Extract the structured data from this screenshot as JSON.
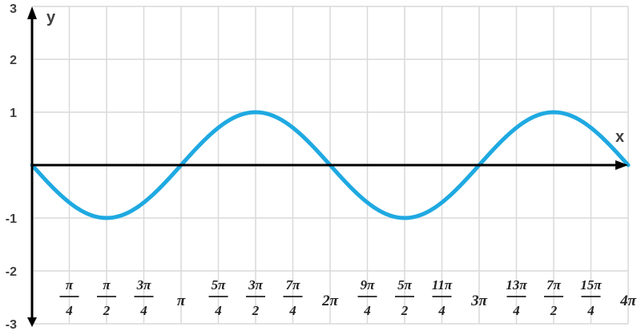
{
  "chart_data": {
    "type": "line",
    "title": "",
    "xlabel": "x",
    "ylabel": "y",
    "xlim": [
      0,
      12.566370614359172
    ],
    "ylim": [
      -3,
      3
    ],
    "grid": true,
    "series": [
      {
        "function": "-sin(x)",
        "samples": 160,
        "color": "#1fa9e1"
      }
    ],
    "y_ticks": [
      {
        "value": 3,
        "label": "3"
      },
      {
        "value": 2,
        "label": "2"
      },
      {
        "value": 1,
        "label": "1"
      },
      {
        "value": -1,
        "label": "-1"
      },
      {
        "value": -2,
        "label": "-2"
      },
      {
        "value": -3,
        "label": "-3"
      }
    ],
    "x_ticks": [
      {
        "value": 0.7853981633974483,
        "num": "π",
        "den": "4"
      },
      {
        "value": 1.5707963267948966,
        "num": "π",
        "den": "2"
      },
      {
        "value": 2.356194490192345,
        "num": "3π",
        "den": "4"
      },
      {
        "value": 3.141592653589793,
        "label": "π"
      },
      {
        "value": 3.9269908169872414,
        "num": "5π",
        "den": "4"
      },
      {
        "value": 4.71238898038469,
        "num": "3π",
        "den": "2"
      },
      {
        "value": 5.497787143782138,
        "num": "7π",
        "den": "4"
      },
      {
        "value": 6.283185307179586,
        "label": "2π"
      },
      {
        "value": 7.0685834705770345,
        "num": "9π",
        "den": "4"
      },
      {
        "value": 7.853981633974483,
        "num": "5π",
        "den": "2"
      },
      {
        "value": 8.63937979737193,
        "num": "11π",
        "den": "4"
      },
      {
        "value": 9.42477796076938,
        "label": "3π"
      },
      {
        "value": 10.210176124166829,
        "num": "13π",
        "den": "4"
      },
      {
        "value": 10.995574287564276,
        "num": "7π",
        "den": "2"
      },
      {
        "value": 11.780972450961723,
        "num": "15π",
        "den": "4"
      },
      {
        "value": 12.566370614359172,
        "label": "4π"
      }
    ],
    "colors": {
      "curve": "#1fa9e1",
      "axis": "#000000",
      "grid": "#d9d9d9"
    }
  }
}
